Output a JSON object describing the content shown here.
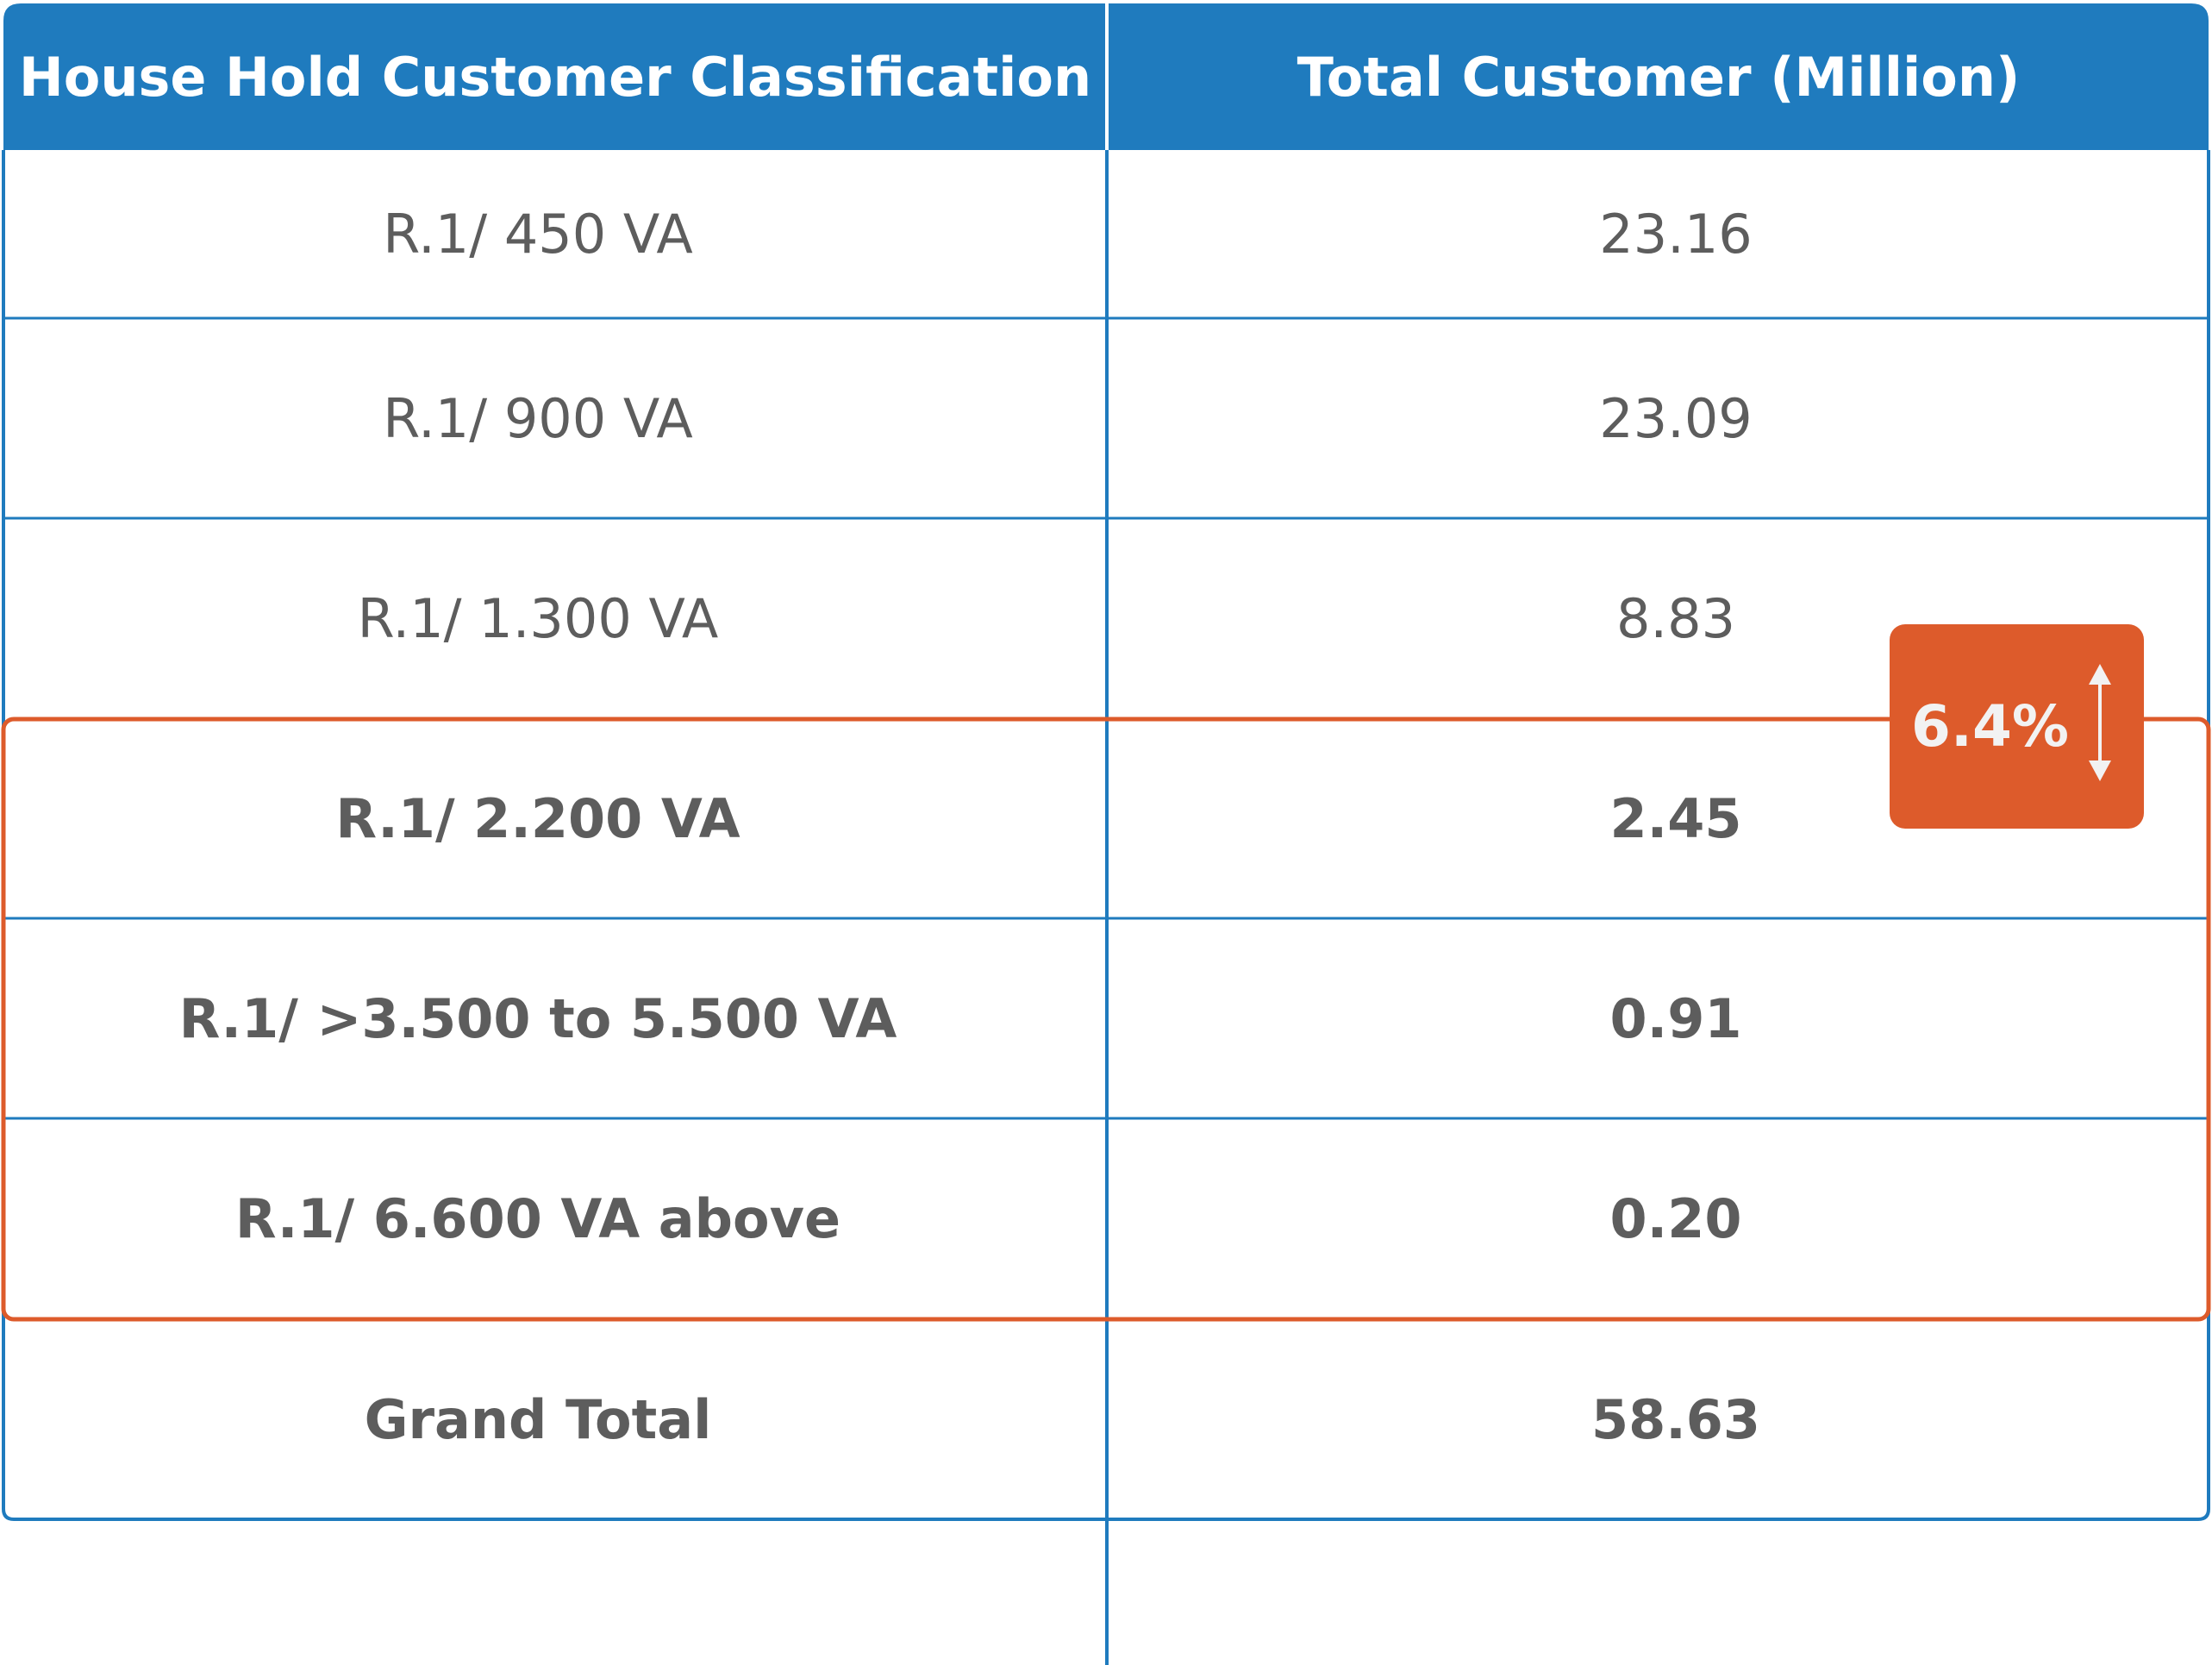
{
  "chart_data": {
    "type": "table",
    "columns": [
      "House Hold Customer Classification",
      "Total Customer (Million)"
    ],
    "rows": [
      {
        "label": "R.1/ 450 VA",
        "value": "23.16",
        "highlighted": false
      },
      {
        "label": "R.1/ 900 VA",
        "value": "23.09",
        "highlighted": false
      },
      {
        "label": "R.1/ 1.300 VA",
        "value": "8.83",
        "highlighted": false
      },
      {
        "label": "R.1/ 2.200 VA",
        "value": "2.45",
        "highlighted": true
      },
      {
        "label": "R.1/ >3.500 to 5.500 VA",
        "value": "0.91",
        "highlighted": true
      },
      {
        "label": "R.1/ 6.600 VA above",
        "value": "0.20",
        "highlighted": true
      }
    ],
    "total": {
      "label": "Grand Total",
      "value": "58.63"
    },
    "annotation": {
      "text": "6.4%",
      "icon": "up-down-arrow-icon"
    },
    "colors": {
      "header": "#1f7bbe",
      "grid": "#1f7bbe",
      "highlight": "#dd5b2b",
      "text": "#5d5d5d",
      "header_text": "#ffffff"
    }
  }
}
